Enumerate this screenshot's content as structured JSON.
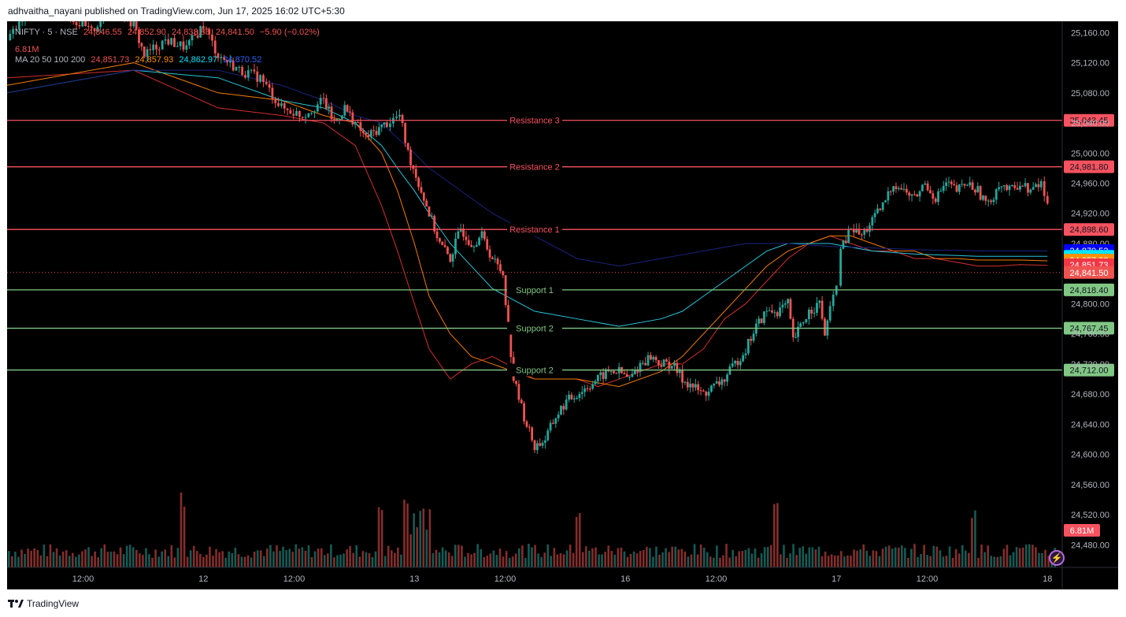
{
  "header": {
    "publisher_caption": "adhvaitha_nayani published on TradingView.com, Jun 17, 2025 16:02 UTC+5:30"
  },
  "legend": {
    "symbol_text": "NIFTY · 5 · NSE",
    "ohlc": [
      "24,846.55",
      "24,852.90",
      "24,833.85",
      "24,841.50",
      "−5.90 (−0.02%)"
    ],
    "volume": "6.81M",
    "ma_label": "MA 20 50 100 200",
    "ma_values": [
      "24,851.73",
      "24,857.93",
      "24,862.97",
      "24,870.52"
    ]
  },
  "colors": {
    "background": "#000000",
    "up": "#26a69a",
    "down": "#ef5350",
    "resistance": "#f7525f",
    "support": "#81c784",
    "ma20": "#d32f2f",
    "ma50": "#f57c00",
    "ma100": "#26c6da",
    "ma200": "#1a237e",
    "axis_text": "#b2b5be"
  },
  "chart_data": {
    "type": "candlestick",
    "symbol": "NIFTY 50",
    "interval": "5m",
    "y_axis": {
      "ylim": [
        24450,
        25175
      ],
      "ticks": [
        25160,
        25120,
        25080,
        25040,
        25000,
        24960,
        24920,
        24880,
        24840,
        24800,
        24760,
        24720,
        24680,
        24640,
        24600,
        24560,
        24520,
        24480
      ],
      "tick_labels": [
        "25,160.00",
        "25,120.00",
        "25,080.00",
        "25,040.00",
        "25,000.00",
        "24,960.00",
        "24,920.00",
        "24,880.00",
        "24,840.00",
        "24,800.00",
        "24,760.00",
        "24,720.00",
        "24,680.00",
        "24,640.00",
        "24,600.00",
        "24,560.00",
        "24,520.00",
        "24,480.00"
      ]
    },
    "x_axis": {
      "range": [
        0,
        1000
      ],
      "ticks": [
        {
          "x": 72,
          "label": "12:00"
        },
        {
          "x": 186,
          "label": "12"
        },
        {
          "x": 272,
          "label": "12:00"
        },
        {
          "x": 386,
          "label": "13"
        },
        {
          "x": 472,
          "label": "12:00"
        },
        {
          "x": 586,
          "label": "16"
        },
        {
          "x": 672,
          "label": "12:00"
        },
        {
          "x": 786,
          "label": "17"
        },
        {
          "x": 872,
          "label": "12:00"
        },
        {
          "x": 986,
          "label": "18"
        }
      ]
    },
    "levels": [
      {
        "name": "Resistance 3",
        "value": 25043.45,
        "label": "25,043.45",
        "kind": "resistance"
      },
      {
        "name": "Resistance 2",
        "value": 24981.8,
        "label": "24,981.80",
        "kind": "resistance"
      },
      {
        "name": "Resistance 1",
        "value": 24898.6,
        "label": "24,898.60",
        "kind": "resistance"
      },
      {
        "name": "Support 1",
        "value": 24818.4,
        "label": "24,818.40",
        "kind": "support"
      },
      {
        "name": "Support 2",
        "value": 24767.45,
        "label": "24,767.45",
        "kind": "support"
      },
      {
        "name": "Support 2",
        "value": 24712.0,
        "label": "24,712.00",
        "kind": "support"
      }
    ],
    "price_tags": [
      {
        "value": 24870.52,
        "label": "24,870.52",
        "color": "#0000ff"
      },
      {
        "value": 24862.97,
        "label": "24,862.97",
        "color": "#00e5ff"
      },
      {
        "value": 24857.93,
        "label": "24,857.93",
        "color": "#ff8f00"
      },
      {
        "value": 24851.73,
        "label": "24,851.73",
        "color": "#f23645"
      },
      {
        "value": 24841.5,
        "label": "24,841.50",
        "color": "#ef5350"
      }
    ],
    "volume_tag": "6.81M",
    "price_path": [
      [
        0,
        25150
      ],
      [
        20,
        25185
      ],
      [
        40,
        25200
      ],
      [
        60,
        25180
      ],
      [
        80,
        25160
      ],
      [
        100,
        25200
      ],
      [
        120,
        25170
      ],
      [
        130,
        25130
      ],
      [
        150,
        25150
      ],
      [
        170,
        25140
      ],
      [
        186,
        25170
      ],
      [
        200,
        25130
      ],
      [
        220,
        25110
      ],
      [
        240,
        25100
      ],
      [
        260,
        25060
      ],
      [
        280,
        25050
      ],
      [
        300,
        25070
      ],
      [
        310,
        25040
      ],
      [
        320,
        25060
      ],
      [
        330,
        25040
      ],
      [
        340,
        25020
      ],
      [
        350,
        25030
      ],
      [
        360,
        25040
      ],
      [
        372,
        25050
      ],
      [
        380,
        25000
      ],
      [
        390,
        24960
      ],
      [
        400,
        24920
      ],
      [
        410,
        24880
      ],
      [
        420,
        24860
      ],
      [
        430,
        24900
      ],
      [
        440,
        24880
      ],
      [
        450,
        24890
      ],
      [
        460,
        24860
      ],
      [
        470,
        24840
      ],
      [
        480,
        24700
      ],
      [
        490,
        24650
      ],
      [
        500,
        24610
      ],
      [
        510,
        24620
      ],
      [
        520,
        24650
      ],
      [
        530,
        24670
      ],
      [
        540,
        24680
      ],
      [
        550,
        24690
      ],
      [
        560,
        24700
      ],
      [
        570,
        24710
      ],
      [
        580,
        24710
      ],
      [
        590,
        24700
      ],
      [
        600,
        24720
      ],
      [
        610,
        24730
      ],
      [
        620,
        24720
      ],
      [
        630,
        24720
      ],
      [
        640,
        24700
      ],
      [
        650,
        24690
      ],
      [
        660,
        24680
      ],
      [
        670,
        24690
      ],
      [
        680,
        24700
      ],
      [
        690,
        24720
      ],
      [
        700,
        24740
      ],
      [
        710,
        24770
      ],
      [
        720,
        24790
      ],
      [
        730,
        24790
      ],
      [
        740,
        24800
      ],
      [
        745,
        24750
      ],
      [
        752,
        24770
      ],
      [
        760,
        24790
      ],
      [
        770,
        24800
      ],
      [
        775,
        24760
      ],
      [
        780,
        24790
      ],
      [
        786,
        24830
      ],
      [
        790,
        24870
      ],
      [
        800,
        24900
      ],
      [
        810,
        24890
      ],
      [
        820,
        24910
      ],
      [
        830,
        24930
      ],
      [
        840,
        24960
      ],
      [
        850,
        24950
      ],
      [
        860,
        24940
      ],
      [
        870,
        24960
      ],
      [
        880,
        24940
      ],
      [
        890,
        24960
      ],
      [
        900,
        24950
      ],
      [
        910,
        24960
      ],
      [
        920,
        24950
      ],
      [
        930,
        24930
      ],
      [
        940,
        24960
      ],
      [
        950,
        24950
      ],
      [
        960,
        24960
      ],
      [
        970,
        24950
      ],
      [
        980,
        24960
      ],
      [
        986,
        24930
      ]
    ],
    "moving_averages": [
      {
        "name": "MA 20",
        "values": [
          [
            0,
            25100
          ],
          [
            120,
            25110
          ],
          [
            200,
            25060
          ],
          [
            260,
            25050
          ],
          [
            300,
            25040
          ],
          [
            330,
            25010
          ],
          [
            355,
            24930
          ],
          [
            370,
            24870
          ],
          [
            386,
            24800
          ],
          [
            400,
            24740
          ],
          [
            420,
            24700
          ],
          [
            440,
            24720
          ],
          [
            460,
            24730
          ],
          [
            500,
            24700
          ],
          [
            540,
            24700
          ],
          [
            560,
            24690
          ],
          [
            580,
            24700
          ],
          [
            600,
            24710
          ],
          [
            620,
            24720
          ],
          [
            640,
            24720
          ],
          [
            660,
            24740
          ],
          [
            680,
            24780
          ],
          [
            700,
            24800
          ],
          [
            720,
            24830
          ],
          [
            740,
            24860
          ],
          [
            760,
            24880
          ],
          [
            780,
            24890
          ],
          [
            800,
            24880
          ],
          [
            820,
            24870
          ],
          [
            840,
            24870
          ],
          [
            860,
            24860
          ],
          [
            880,
            24860
          ],
          [
            900,
            24855
          ],
          [
            920,
            24850
          ],
          [
            940,
            24850
          ],
          [
            960,
            24852
          ],
          [
            986,
            24851
          ]
        ]
      },
      {
        "name": "MA 50",
        "values": [
          [
            0,
            25090
          ],
          [
            120,
            25120
          ],
          [
            200,
            25080
          ],
          [
            260,
            25070
          ],
          [
            300,
            25050
          ],
          [
            330,
            25040
          ],
          [
            355,
            25000
          ],
          [
            370,
            24950
          ],
          [
            386,
            24880
          ],
          [
            400,
            24810
          ],
          [
            420,
            24760
          ],
          [
            440,
            24730
          ],
          [
            460,
            24720
          ],
          [
            500,
            24700
          ],
          [
            540,
            24700
          ],
          [
            580,
            24690
          ],
          [
            620,
            24710
          ],
          [
            640,
            24730
          ],
          [
            660,
            24760
          ],
          [
            680,
            24790
          ],
          [
            700,
            24820
          ],
          [
            720,
            24850
          ],
          [
            740,
            24870
          ],
          [
            760,
            24880
          ],
          [
            780,
            24890
          ],
          [
            800,
            24890
          ],
          [
            820,
            24880
          ],
          [
            840,
            24870
          ],
          [
            860,
            24870
          ],
          [
            880,
            24860
          ],
          [
            900,
            24860
          ],
          [
            920,
            24858
          ],
          [
            940,
            24858
          ],
          [
            960,
            24858
          ],
          [
            986,
            24857
          ]
        ]
      },
      {
        "name": "MA 100",
        "values": [
          [
            0,
            25080
          ],
          [
            120,
            25110
          ],
          [
            200,
            25100
          ],
          [
            260,
            25070
          ],
          [
            300,
            25060
          ],
          [
            330,
            25040
          ],
          [
            355,
            25010
          ],
          [
            370,
            24980
          ],
          [
            386,
            24950
          ],
          [
            400,
            24920
          ],
          [
            420,
            24880
          ],
          [
            440,
            24850
          ],
          [
            460,
            24820
          ],
          [
            500,
            24790
          ],
          [
            540,
            24780
          ],
          [
            580,
            24770
          ],
          [
            620,
            24780
          ],
          [
            640,
            24790
          ],
          [
            660,
            24810
          ],
          [
            680,
            24830
          ],
          [
            700,
            24850
          ],
          [
            720,
            24870
          ],
          [
            740,
            24880
          ],
          [
            760,
            24880
          ],
          [
            780,
            24880
          ],
          [
            800,
            24875
          ],
          [
            820,
            24870
          ],
          [
            840,
            24868
          ],
          [
            860,
            24866
          ],
          [
            880,
            24865
          ],
          [
            900,
            24864
          ],
          [
            920,
            24863
          ],
          [
            940,
            24863
          ],
          [
            960,
            24863
          ],
          [
            986,
            24863
          ]
        ]
      },
      {
        "name": "MA 200",
        "values": [
          [
            0,
            25080
          ],
          [
            120,
            25110
          ],
          [
            200,
            25110
          ],
          [
            260,
            25090
          ],
          [
            300,
            25070
          ],
          [
            330,
            25050
          ],
          [
            355,
            25040
          ],
          [
            370,
            25020
          ],
          [
            386,
            25000
          ],
          [
            400,
            24980
          ],
          [
            420,
            24960
          ],
          [
            440,
            24940
          ],
          [
            460,
            24920
          ],
          [
            500,
            24890
          ],
          [
            540,
            24860
          ],
          [
            580,
            24850
          ],
          [
            620,
            24860
          ],
          [
            640,
            24865
          ],
          [
            660,
            24870
          ],
          [
            680,
            24875
          ],
          [
            700,
            24880
          ],
          [
            720,
            24880
          ],
          [
            740,
            24880
          ],
          [
            760,
            24878
          ],
          [
            780,
            24876
          ],
          [
            800,
            24875
          ],
          [
            820,
            24874
          ],
          [
            840,
            24873
          ],
          [
            860,
            24872
          ],
          [
            880,
            24871
          ],
          [
            900,
            24871
          ],
          [
            920,
            24870
          ],
          [
            940,
            24870
          ],
          [
            960,
            24870
          ],
          [
            986,
            24870
          ]
        ]
      }
    ]
  },
  "footer": {
    "brand": "TradingView"
  }
}
